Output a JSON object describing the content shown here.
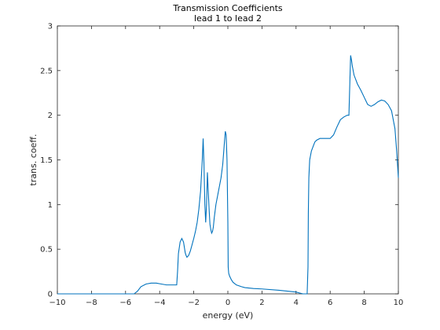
{
  "chart_data": {
    "type": "line",
    "title": "Transmission Coefficients",
    "subtitle": "lead 1 to lead 2",
    "xlabel": "energy (eV)",
    "ylabel": "trans. coeff.",
    "xlim": [
      -10,
      10
    ],
    "ylim": [
      0,
      3
    ],
    "xticks": [
      -10,
      -8,
      -6,
      -4,
      -2,
      0,
      2,
      4,
      6,
      8,
      10
    ],
    "yticks": [
      0,
      0.5,
      1,
      1.5,
      2,
      2.5,
      3
    ],
    "grid": false,
    "legend": "none",
    "line_color": "#0072bd",
    "series": [
      {
        "x": [
          -10,
          -8,
          -6,
          -5.5,
          -5.3,
          -5.1,
          -4.8,
          -4.5,
          -4.2,
          -3.9,
          -3.6,
          -3.3,
          -3.1,
          -3.0,
          -2.95,
          -2.9,
          -2.8,
          -2.7,
          -2.6,
          -2.5,
          -2.45,
          -2.4,
          -2.3,
          -2.2,
          -2.1,
          -2.0,
          -1.9,
          -1.8,
          -1.7,
          -1.6,
          -1.5,
          -1.45,
          -1.4,
          -1.35,
          -1.3,
          -1.25,
          -1.2,
          -1.15,
          -1.1,
          -1.05,
          -1.0,
          -0.95,
          -0.9,
          -0.85,
          -0.8,
          -0.7,
          -0.6,
          -0.5,
          -0.4,
          -0.3,
          -0.2,
          -0.15,
          -0.1,
          -0.05,
          0.0,
          0.02,
          0.05,
          0.1,
          0.2,
          0.3,
          0.5,
          0.8,
          1.0,
          1.5,
          2.0,
          3.0,
          3.5,
          4.0,
          4.2,
          4.4,
          4.6,
          4.65,
          4.7,
          4.72,
          4.75,
          4.8,
          4.9,
          5.0,
          5.1,
          5.2,
          5.4,
          5.6,
          5.8,
          6.0,
          6.2,
          6.4,
          6.6,
          6.8,
          7.0,
          7.1,
          7.2,
          7.25,
          7.3,
          7.35,
          7.4,
          7.5,
          7.6,
          7.8,
          8.0,
          8.2,
          8.4,
          8.6,
          8.8,
          9.0,
          9.2,
          9.4,
          9.6,
          9.8,
          9.9,
          10.0
        ],
        "y": [
          0.0,
          0.0,
          0.0,
          0.0,
          0.03,
          0.08,
          0.11,
          0.12,
          0.12,
          0.11,
          0.1,
          0.1,
          0.1,
          0.1,
          0.25,
          0.45,
          0.58,
          0.62,
          0.58,
          0.46,
          0.43,
          0.41,
          0.43,
          0.48,
          0.55,
          0.62,
          0.7,
          0.8,
          0.95,
          1.15,
          1.5,
          1.74,
          1.45,
          1.0,
          0.8,
          1.0,
          1.36,
          1.15,
          0.95,
          0.78,
          0.72,
          0.68,
          0.7,
          0.75,
          0.85,
          1.0,
          1.1,
          1.2,
          1.3,
          1.45,
          1.7,
          1.82,
          1.78,
          1.5,
          0.8,
          0.3,
          0.23,
          0.2,
          0.16,
          0.13,
          0.1,
          0.08,
          0.07,
          0.06,
          0.055,
          0.04,
          0.03,
          0.02,
          0.01,
          0.0,
          0.0,
          0.0,
          0.3,
          0.9,
          1.3,
          1.5,
          1.6,
          1.65,
          1.7,
          1.72,
          1.74,
          1.74,
          1.74,
          1.74,
          1.78,
          1.87,
          1.95,
          1.98,
          2.0,
          2.0,
          2.67,
          2.62,
          2.55,
          2.5,
          2.45,
          2.4,
          2.35,
          2.28,
          2.2,
          2.12,
          2.1,
          2.12,
          2.15,
          2.17,
          2.16,
          2.12,
          2.05,
          1.85,
          1.6,
          1.3
        ]
      }
    ]
  }
}
